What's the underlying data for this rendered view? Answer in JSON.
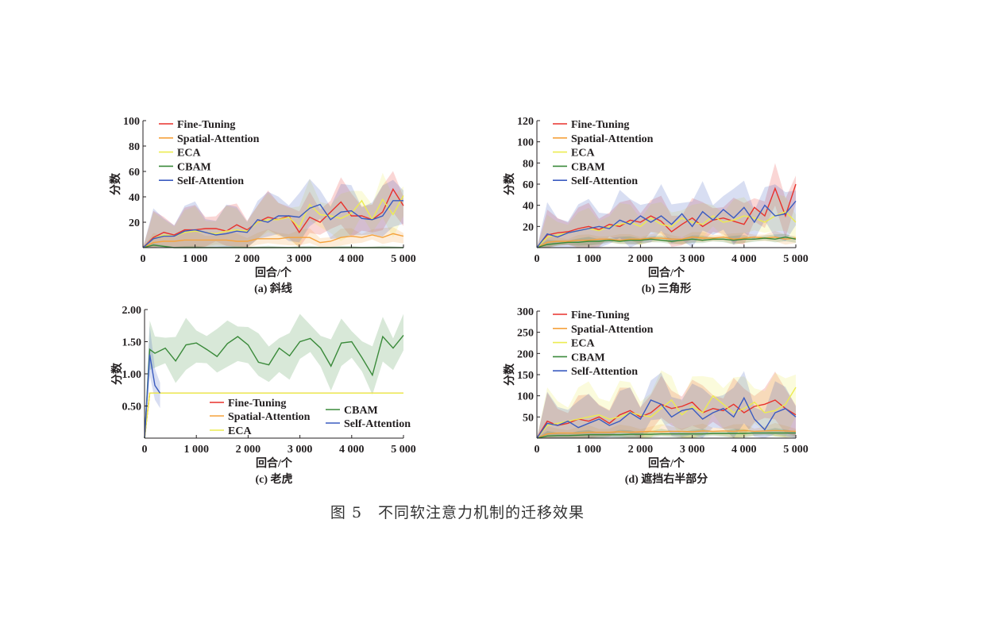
{
  "figure_caption": "图 5　不同软注意力机制的迁移效果",
  "colors": {
    "Fine-Tuning": "#e8312b",
    "Spatial-Attention": "#f5a23c",
    "ECA": "#ecec50",
    "CBAM": "#3a8a3a",
    "Self-Attention": "#3a5bc0"
  },
  "chart_data": [
    {
      "type": "line",
      "title": "(a) 斜线",
      "xlabel": "回合/个",
      "ylabel": "分数",
      "xlim": [
        0,
        5000
      ],
      "ylim": [
        0,
        100
      ],
      "xticks": [
        0,
        1000,
        2000,
        3000,
        4000,
        5000
      ],
      "xtick_labels": [
        "0",
        "1 000",
        "2 000",
        "3 000",
        "4 000",
        "5 000"
      ],
      "yticks": [
        20,
        40,
        60,
        80,
        100
      ],
      "ytick_labels": [
        "20",
        "40",
        "60",
        "80",
        "100"
      ],
      "legend": "top-left",
      "legend_columns": 1,
      "x": [
        0,
        200,
        400,
        600,
        800,
        1000,
        1200,
        1400,
        1600,
        1800,
        2000,
        2200,
        2400,
        2600,
        2800,
        3000,
        3200,
        3400,
        3600,
        3800,
        4000,
        4200,
        4400,
        4600,
        4800,
        5000
      ],
      "series": [
        {
          "name": "Fine-Tuning",
          "band": 14,
          "values": [
            0,
            8,
            12,
            10,
            14,
            14,
            15,
            15,
            13,
            18,
            14,
            20,
            24,
            22,
            25,
            12,
            24,
            20,
            28,
            36,
            25,
            25,
            22,
            28,
            46,
            33
          ]
        },
        {
          "name": "Spatial-Attention",
          "band": 5,
          "values": [
            0,
            4,
            5,
            5,
            6,
            6,
            6,
            6,
            6,
            5,
            5,
            7,
            7,
            7,
            8,
            8,
            8,
            4,
            5,
            8,
            9,
            8,
            10,
            8,
            11,
            9
          ]
        },
        {
          "name": "ECA",
          "band": 14,
          "values": [
            0,
            7,
            10,
            9,
            12,
            13,
            12,
            11,
            13,
            14,
            13,
            20,
            22,
            22,
            24,
            16,
            34,
            26,
            25,
            23,
            27,
            37,
            22,
            38,
            26,
            41
          ]
        },
        {
          "name": "CBAM",
          "band": 1,
          "values": [
            0,
            2,
            1,
            0,
            0,
            0,
            0,
            0,
            0,
            0,
            0,
            0,
            0,
            0,
            0,
            0,
            0,
            0,
            0,
            0,
            0,
            0,
            0,
            0,
            0,
            0
          ]
        },
        {
          "name": "Self-Attention",
          "band": 16,
          "values": [
            0,
            7,
            9,
            9,
            13,
            14,
            12,
            10,
            11,
            13,
            12,
            22,
            20,
            25,
            25,
            24,
            31,
            34,
            22,
            28,
            29,
            23,
            22,
            25,
            37,
            37
          ]
        }
      ]
    },
    {
      "type": "line",
      "title": "(b) 三角形",
      "xlabel": "回合/个",
      "ylabel": "分数",
      "xlim": [
        0,
        5000
      ],
      "ylim": [
        0,
        120
      ],
      "xticks": [
        0,
        1000,
        2000,
        3000,
        4000,
        5000
      ],
      "xtick_labels": [
        "0",
        "1 000",
        "2 000",
        "3 000",
        "4 000",
        "5 000"
      ],
      "yticks": [
        20,
        40,
        60,
        80,
        100,
        120
      ],
      "ytick_labels": [
        "20",
        "40",
        "60",
        "80",
        "100",
        "120"
      ],
      "legend": "top-left",
      "legend_columns": 1,
      "x": [
        0,
        200,
        400,
        600,
        800,
        1000,
        1200,
        1400,
        1600,
        1800,
        2000,
        2200,
        2400,
        2600,
        2800,
        3000,
        3200,
        3400,
        3600,
        3800,
        4000,
        4200,
        4400,
        4600,
        4800,
        5000
      ],
      "series": [
        {
          "name": "Fine-Tuning",
          "band": 16,
          "values": [
            0,
            12,
            14,
            15,
            18,
            20,
            17,
            22,
            20,
            26,
            24,
            30,
            25,
            15,
            22,
            28,
            20,
            26,
            28,
            25,
            22,
            38,
            30,
            56,
            30,
            60
          ]
        },
        {
          "name": "Spatial-Attention",
          "band": 4,
          "values": [
            0,
            5,
            6,
            6,
            7,
            7,
            8,
            8,
            7,
            8,
            8,
            9,
            9,
            8,
            8,
            10,
            9,
            9,
            10,
            8,
            9,
            10,
            9,
            10,
            8,
            9
          ]
        },
        {
          "name": "ECA",
          "band": 14,
          "values": [
            0,
            10,
            12,
            14,
            16,
            18,
            16,
            20,
            22,
            24,
            20,
            28,
            22,
            20,
            28,
            24,
            22,
            30,
            24,
            26,
            30,
            28,
            24,
            30,
            34,
            24
          ]
        },
        {
          "name": "CBAM",
          "band": 3,
          "values": [
            0,
            3,
            4,
            5,
            5,
            6,
            6,
            7,
            6,
            7,
            7,
            8,
            7,
            6,
            7,
            8,
            7,
            8,
            8,
            7,
            8,
            8,
            9,
            8,
            10,
            8
          ]
        },
        {
          "name": "Self-Attention",
          "band": 20,
          "values": [
            0,
            13,
            10,
            14,
            16,
            18,
            20,
            18,
            26,
            22,
            30,
            24,
            30,
            22,
            32,
            20,
            34,
            26,
            36,
            28,
            38,
            24,
            40,
            30,
            32,
            44
          ]
        }
      ]
    },
    {
      "type": "line",
      "title": "(c) 老虎",
      "xlabel": "回合/个",
      "ylabel": "分数",
      "xlim": [
        0,
        5000
      ],
      "ylim": [
        0,
        2
      ],
      "xticks": [
        0,
        1000,
        2000,
        3000,
        4000,
        5000
      ],
      "xtick_labels": [
        "0",
        "1 000",
        "2 000",
        "3 000",
        "4 000",
        "5 000"
      ],
      "yticks": [
        0.5,
        1,
        1.5,
        2
      ],
      "ytick_labels": [
        "0.50",
        "1.00",
        "1.50",
        "2.00"
      ],
      "legend": "bottom-center",
      "legend_columns": 2,
      "x": [
        0,
        100,
        5000
      ],
      "series": [
        {
          "name": "Fine-Tuning",
          "band": 0,
          "values": [
            0,
            0.7,
            0.7
          ]
        },
        {
          "name": "Spatial-Attention",
          "band": 0,
          "values": [
            0,
            0.7,
            0.7
          ]
        },
        {
          "name": "ECA",
          "band": 0,
          "values": [
            0,
            0.7,
            0.7
          ]
        },
        {
          "name": "CBAM",
          "band": 0.3,
          "x": [
            0,
            100,
            200,
            400,
            600,
            800,
            1000,
            1200,
            1400,
            1600,
            1800,
            2000,
            2200,
            2400,
            2600,
            2800,
            3000,
            3200,
            3400,
            3600,
            3800,
            4000,
            4200,
            4400,
            4600,
            4800,
            5000
          ],
          "values": [
            0,
            1.38,
            1.32,
            1.4,
            1.2,
            1.45,
            1.48,
            1.38,
            1.27,
            1.47,
            1.58,
            1.45,
            1.18,
            1.14,
            1.4,
            1.28,
            1.5,
            1.55,
            1.4,
            1.12,
            1.48,
            1.5,
            1.25,
            0.98,
            1.58,
            1.4,
            1.6
          ]
        },
        {
          "name": "Self-Attention",
          "band": 0.3,
          "x": [
            0,
            100,
            200,
            300
          ],
          "values": [
            0,
            1.3,
            0.82,
            0.7
          ]
        }
      ]
    },
    {
      "type": "line",
      "title": "(d) 遮挡右半部分",
      "xlabel": "回合/个",
      "ylabel": "分数",
      "xlim": [
        0,
        5000
      ],
      "ylim": [
        0,
        300
      ],
      "xticks": [
        0,
        1000,
        2000,
        3000,
        4000,
        5000
      ],
      "xtick_labels": [
        "0",
        "1 000",
        "2 000",
        "3 000",
        "4 000",
        "5 000"
      ],
      "yticks": [
        50,
        100,
        150,
        200,
        250,
        300
      ],
      "ytick_labels": [
        "50",
        "100",
        "150",
        "200",
        "250",
        "300"
      ],
      "legend": "top-left",
      "legend_columns": 1,
      "x": [
        0,
        200,
        400,
        600,
        800,
        1000,
        1200,
        1400,
        1600,
        1800,
        2000,
        2200,
        2400,
        2600,
        2800,
        3000,
        3200,
        3400,
        3600,
        3800,
        4000,
        4200,
        4400,
        4600,
        4800,
        5000
      ],
      "series": [
        {
          "name": "Fine-Tuning",
          "band": 45,
          "values": [
            0,
            40,
            30,
            35,
            45,
            40,
            50,
            35,
            55,
            65,
            50,
            60,
            80,
            70,
            75,
            85,
            60,
            70,
            65,
            80,
            60,
            75,
            80,
            90,
            70,
            55
          ]
        },
        {
          "name": "Spatial-Attention",
          "band": 12,
          "values": [
            0,
            10,
            12,
            12,
            12,
            14,
            14,
            14,
            15,
            14,
            15,
            16,
            15,
            16,
            16,
            15,
            17,
            16,
            17,
            16,
            18,
            16,
            17,
            18,
            17,
            16
          ]
        },
        {
          "name": "ECA",
          "band": 60,
          "values": [
            0,
            30,
            35,
            40,
            45,
            50,
            55,
            45,
            50,
            60,
            55,
            50,
            70,
            90,
            55,
            75,
            60,
            100,
            80,
            60,
            70,
            85,
            60,
            65,
            80,
            120
          ]
        },
        {
          "name": "CBAM",
          "band": 8,
          "values": [
            0,
            5,
            6,
            6,
            7,
            8,
            8,
            8,
            8,
            9,
            9,
            9,
            10,
            10,
            10,
            10,
            10,
            11,
            11,
            11,
            11,
            12,
            12,
            12,
            12,
            12
          ]
        },
        {
          "name": "Self-Attention",
          "band": 50,
          "values": [
            0,
            35,
            30,
            40,
            25,
            35,
            45,
            30,
            40,
            60,
            45,
            90,
            80,
            50,
            65,
            70,
            45,
            60,
            70,
            50,
            95,
            45,
            20,
            60,
            70,
            50
          ]
        }
      ]
    }
  ]
}
